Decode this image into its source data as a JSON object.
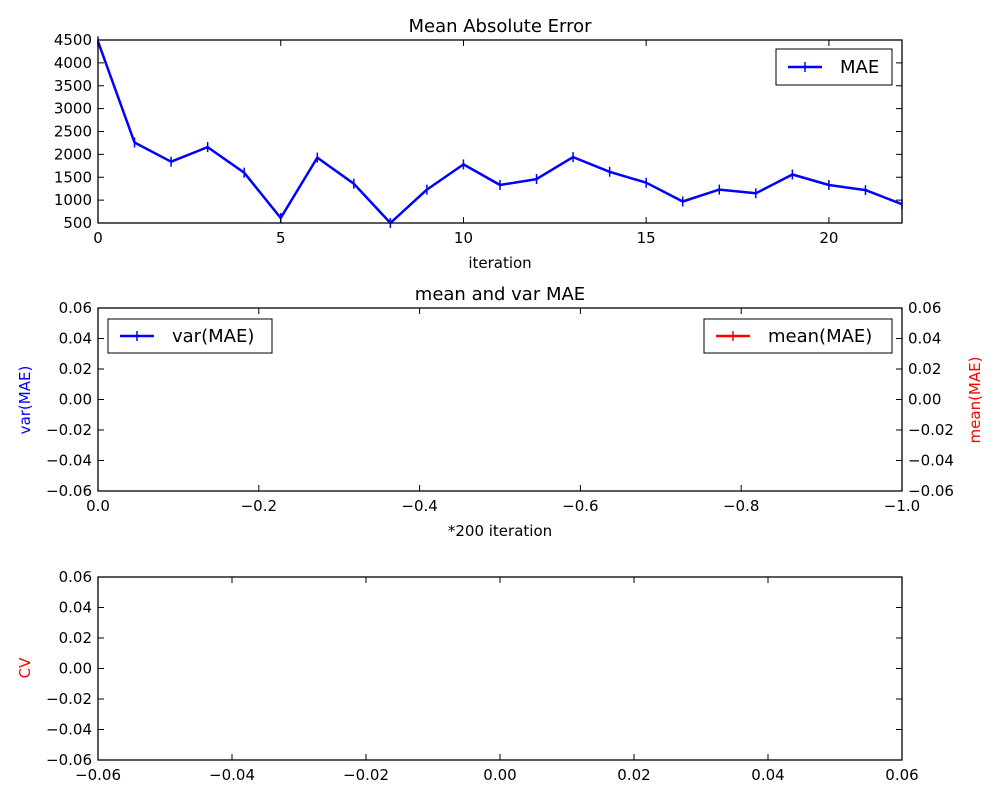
{
  "chart_data": [
    {
      "type": "line",
      "title": "Mean Absolute Error",
      "xlabel": "iteration",
      "ylabel": "",
      "xlim": [
        0,
        22
      ],
      "ylim": [
        500,
        4500
      ],
      "xticks": [
        "0",
        "5",
        "10",
        "15",
        "20"
      ],
      "yticks": [
        "500",
        "1000",
        "1500",
        "2000",
        "2500",
        "3000",
        "3500",
        "4000",
        "4500"
      ],
      "legend": {
        "position": "top-right",
        "entries": [
          "MAE"
        ]
      },
      "series": [
        {
          "name": "MAE",
          "color": "#0000ff",
          "x": [
            0,
            1,
            2,
            3,
            4,
            5,
            6,
            7,
            8,
            9,
            10,
            11,
            12,
            13,
            14,
            15,
            16,
            17,
            18,
            19,
            20,
            21,
            22
          ],
          "y": [
            4470,
            2260,
            1840,
            2160,
            1600,
            610,
            1930,
            1360,
            500,
            1230,
            1780,
            1330,
            1460,
            1940,
            1620,
            1380,
            970,
            1230,
            1150,
            1560,
            1330,
            1220,
            910
          ]
        }
      ]
    },
    {
      "type": "line",
      "title": "mean and var MAE",
      "xlabel": "*200 iteration",
      "ylabel": "var(MAE)",
      "ylabel_right": "mean(MAE)",
      "xlim": [
        0.0,
        -1.0
      ],
      "ylim": [
        -0.06,
        0.06
      ],
      "xticks": [
        "0.0",
        "−0.2",
        "−0.4",
        "−0.6",
        "−0.8",
        "−1.0"
      ],
      "yticks": [
        "−0.06",
        "−0.04",
        "−0.02",
        "0.00",
        "0.02",
        "0.04",
        "0.06"
      ],
      "yticks_right": [
        "−0.06",
        "−0.04",
        "−0.02",
        "0.00",
        "0.02",
        "0.04",
        "0.06"
      ],
      "legend": [
        {
          "position": "top-left",
          "entries": [
            "var(MAE)"
          ],
          "color": "#0000ff"
        },
        {
          "position": "top-right",
          "entries": [
            "mean(MAE)"
          ],
          "color": "#ff0000"
        }
      ],
      "series": [
        {
          "name": "var(MAE)",
          "color": "#0000ff",
          "x": [],
          "y": []
        },
        {
          "name": "mean(MAE)",
          "color": "#ff0000",
          "x": [],
          "y": []
        }
      ]
    },
    {
      "type": "line",
      "title": "",
      "xlabel": "",
      "ylabel": "CV",
      "xlim": [
        -0.06,
        0.06
      ],
      "ylim": [
        -0.06,
        0.06
      ],
      "xticks": [
        "−0.06",
        "−0.04",
        "−0.02",
        "0.00",
        "0.02",
        "0.04",
        "0.06"
      ],
      "yticks": [
        "−0.06",
        "−0.04",
        "−0.02",
        "0.00",
        "0.02",
        "0.04",
        "0.06"
      ],
      "series": []
    }
  ],
  "colors": {
    "blue": "#0000ff",
    "red": "#ff0000",
    "axes": "#000000"
  }
}
